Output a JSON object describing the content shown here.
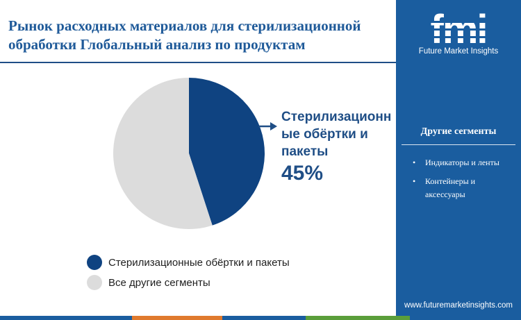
{
  "header": {
    "title_line1": "Рынок расходных материалов для стерилизационной",
    "title_line2": "обработки Глобальный анализ по продуктам"
  },
  "chart_data": {
    "type": "pie",
    "slices": [
      {
        "label": "Стерилизационные обёртки и пакеты",
        "value": 45,
        "color": "#0f4381"
      },
      {
        "label": "Все другие сегменты",
        "value": 55,
        "color": "#dcdcdc"
      }
    ],
    "start_angle_deg": 0,
    "direction": "clockwise",
    "callout": {
      "label_line1": "Стерилизационн",
      "label_line2": "ые обёртки и",
      "label_line3": "пакеты",
      "value_text": "45%"
    },
    "legend": [
      {
        "label": "Стерилизационные обёртки и пакеты",
        "color": "#0f4381"
      },
      {
        "label": "Все другие сегменты",
        "color": "#dcdcdc"
      }
    ]
  },
  "sidebar": {
    "logo_text": "fmi",
    "logo_caption": "Future Market Insights",
    "heading": "Другие сегменты",
    "items": [
      {
        "bullet": "•",
        "text": "Индикаторы и ленты"
      },
      {
        "bullet": "•",
        "text": "Контейнеры и аксессуары"
      }
    ],
    "url": "www.futuremarketinsights.com",
    "background": "#1a5d9f"
  },
  "bottom_stripe": [
    "#1a5d9f",
    "#e07a2e",
    "#1a5d9f",
    "#5a9e3a",
    "#1a5d9f"
  ]
}
